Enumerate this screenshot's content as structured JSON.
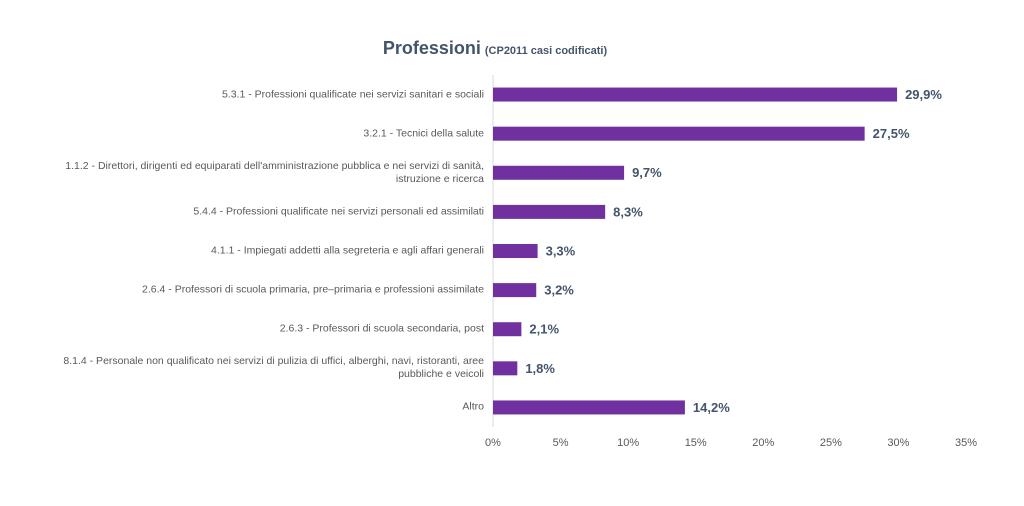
{
  "chart_data": {
    "type": "bar",
    "orientation": "horizontal",
    "title": "Professioni",
    "subtitle": "(CP2011 casi codificati)",
    "categories": [
      "5.3.1 - Professioni qualificate nei servizi sanitari e sociali",
      "3.2.1 - Tecnici della salute",
      "1.1.2 - Direttori, dirigenti ed equiparati dell'amministrazione pubblica e nei servizi di sanità, istruzione e ricerca",
      "5.4.4 - Professioni qualificate nei servizi personali ed assimilati",
      "4.1.1 - Impiegati addetti alla segreteria e agli affari generali",
      "2.6.4 - Professori di scuola primaria, pre–primaria e professioni assimilate",
      "2.6.3 - Professori di scuola secondaria, post",
      "8.1.4 - Personale non qualificato nei servizi di pulizia di uffici, alberghi, navi, ristoranti, aree pubbliche e veicoli",
      "Altro"
    ],
    "values": [
      29.9,
      27.5,
      9.7,
      8.3,
      3.3,
      3.2,
      2.1,
      1.8,
      14.2
    ],
    "value_labels": [
      "29,9%",
      "27,5%",
      "9,7%",
      "8,3%",
      "3,3%",
      "3,2%",
      "2,1%",
      "1,8%",
      "14,2%"
    ],
    "color": "#7030a0",
    "xlim": [
      0,
      35
    ],
    "xticks": [
      {
        "value": 0,
        "label": "0%"
      },
      {
        "value": 5,
        "label": "5%"
      },
      {
        "value": 10,
        "label": "10%"
      },
      {
        "value": 15,
        "label": "15%"
      },
      {
        "value": 20,
        "label": "20%"
      },
      {
        "value": 25,
        "label": "25%"
      },
      {
        "value": 30,
        "label": "30%"
      },
      {
        "value": 35,
        "label": "35%"
      }
    ],
    "grid": false
  }
}
